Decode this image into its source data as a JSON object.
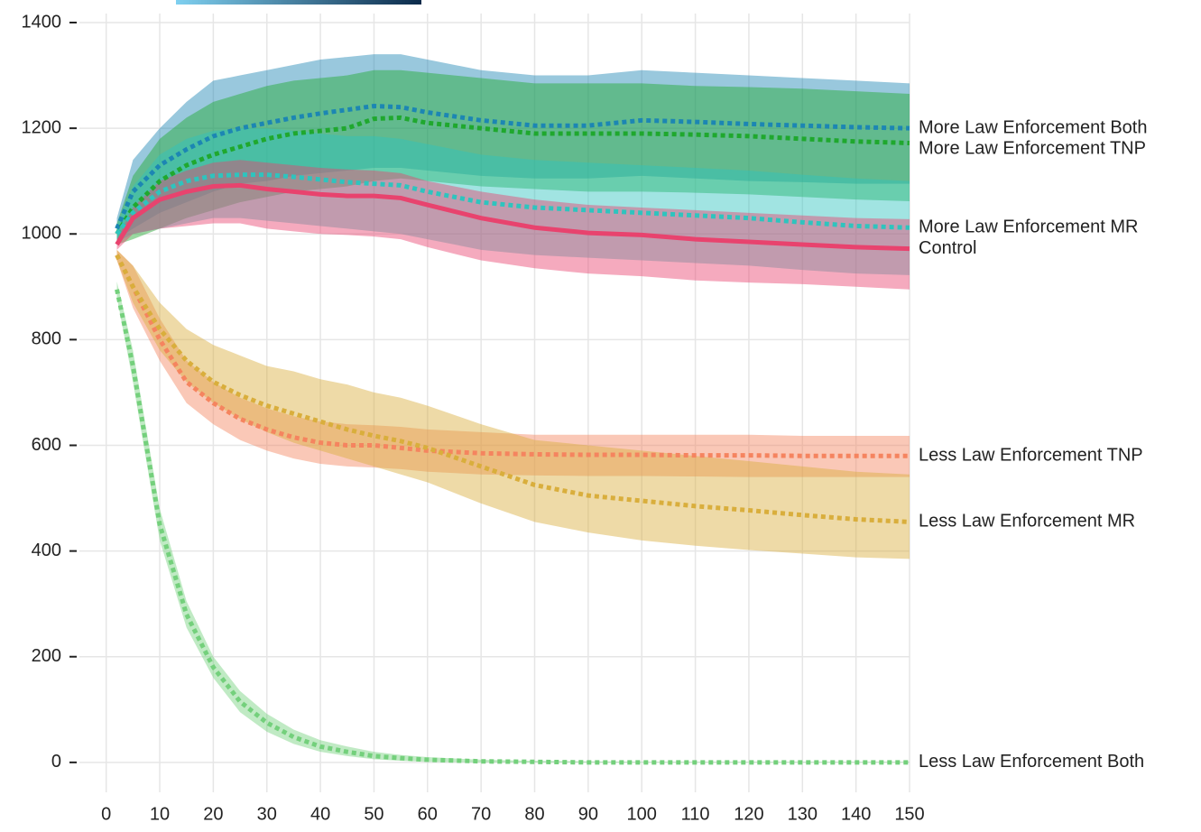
{
  "chart_data": {
    "type": "line",
    "x": [
      2,
      5,
      10,
      15,
      20,
      25,
      30,
      35,
      40,
      45,
      50,
      55,
      60,
      70,
      80,
      90,
      100,
      110,
      120,
      130,
      140,
      150
    ],
    "xlim": [
      -5,
      150
    ],
    "ylim": [
      -60,
      1400
    ],
    "xticks": [
      0,
      10,
      20,
      30,
      40,
      50,
      60,
      70,
      80,
      90,
      100,
      110,
      120,
      130,
      140,
      150
    ],
    "yticks": [
      0,
      200,
      400,
      600,
      800,
      1000,
      1200,
      1400
    ],
    "grid": true,
    "series": [
      {
        "name": "More Law Enforcement Both",
        "color": "#1c86b3",
        "line_style": "dotted",
        "values": [
          1010,
          1080,
          1130,
          1160,
          1185,
          1200,
          1210,
          1220,
          1228,
          1235,
          1242,
          1240,
          1230,
          1215,
          1205,
          1205,
          1215,
          1212,
          1208,
          1205,
          1202,
          1200
        ],
        "lower": [
          990,
          1010,
          1040,
          1060,
          1080,
          1095,
          1100,
          1110,
          1115,
          1120,
          1125,
          1125,
          1120,
          1110,
          1105,
          1105,
          1110,
          1105,
          1100,
          1098,
          1095,
          1095
        ],
        "upper": [
          1030,
          1140,
          1200,
          1250,
          1290,
          1300,
          1310,
          1320,
          1330,
          1335,
          1340,
          1340,
          1330,
          1310,
          1300,
          1300,
          1310,
          1305,
          1300,
          1295,
          1290,
          1285
        ]
      },
      {
        "name": "More Law Enforcement TNP",
        "color": "#1fa82e",
        "line_style": "dotted",
        "values": [
          1000,
          1050,
          1100,
          1130,
          1150,
          1165,
          1180,
          1190,
          1195,
          1200,
          1218,
          1220,
          1210,
          1200,
          1190,
          1190,
          1190,
          1188,
          1185,
          1180,
          1175,
          1172
        ],
        "lower": [
          980,
          990,
          1010,
          1030,
          1045,
          1060,
          1070,
          1080,
          1085,
          1090,
          1100,
          1105,
          1100,
          1090,
          1085,
          1080,
          1080,
          1078,
          1075,
          1070,
          1065,
          1062
        ],
        "upper": [
          1020,
          1110,
          1180,
          1220,
          1250,
          1265,
          1280,
          1290,
          1295,
          1300,
          1310,
          1310,
          1305,
          1295,
          1285,
          1285,
          1285,
          1280,
          1278,
          1275,
          1270,
          1265
        ]
      },
      {
        "name": "More Law Enforcement MR",
        "color": "#2ec4be",
        "line_style": "dotted",
        "values": [
          1000,
          1040,
          1080,
          1100,
          1110,
          1112,
          1112,
          1108,
          1103,
          1098,
          1095,
          1092,
          1080,
          1060,
          1050,
          1045,
          1040,
          1035,
          1030,
          1022,
          1015,
          1012
        ],
        "lower": [
          985,
          1000,
          1010,
          1020,
          1030,
          1030,
          1025,
          1020,
          1015,
          1010,
          1005,
          1000,
          990,
          970,
          960,
          955,
          950,
          945,
          940,
          932,
          925,
          922
        ],
        "upper": [
          1015,
          1090,
          1150,
          1180,
          1195,
          1200,
          1200,
          1195,
          1190,
          1185,
          1185,
          1180,
          1170,
          1150,
          1140,
          1135,
          1130,
          1125,
          1120,
          1112,
          1105,
          1100
        ]
      },
      {
        "name": "Control",
        "color": "#e8436e",
        "line_style": "solid",
        "values": [
          980,
          1030,
          1065,
          1080,
          1090,
          1092,
          1085,
          1080,
          1075,
          1072,
          1072,
          1068,
          1055,
          1030,
          1012,
          1002,
          998,
          990,
          985,
          980,
          975,
          972
        ],
        "lower": [
          970,
          1000,
          1010,
          1015,
          1020,
          1020,
          1010,
          1005,
          1000,
          998,
          995,
          990,
          975,
          950,
          935,
          925,
          920,
          912,
          908,
          905,
          900,
          895
        ],
        "upper": [
          990,
          1050,
          1100,
          1120,
          1135,
          1140,
          1135,
          1130,
          1125,
          1122,
          1120,
          1115,
          1100,
          1080,
          1065,
          1055,
          1050,
          1045,
          1040,
          1035,
          1030,
          1028
        ]
      },
      {
        "name": "Less Law Enforcement TNP",
        "color": "#f5845f",
        "line_style": "dotted",
        "values": [
          960,
          900,
          800,
          720,
          680,
          650,
          630,
          615,
          605,
          600,
          600,
          595,
          590,
          585,
          583,
          582,
          582,
          581,
          581,
          580,
          580,
          580
        ],
        "lower": [
          950,
          860,
          760,
          680,
          640,
          610,
          590,
          575,
          565,
          560,
          558,
          555,
          550,
          545,
          543,
          542,
          542,
          541,
          540,
          540,
          540,
          540
        ],
        "upper": [
          970,
          940,
          840,
          760,
          720,
          690,
          670,
          655,
          645,
          640,
          638,
          635,
          630,
          625,
          620,
          620,
          620,
          620,
          620,
          618,
          618,
          618
        ]
      },
      {
        "name": "Less Law Enforcement MR",
        "color": "#d9ae3c",
        "line_style": "dotted",
        "values": [
          960,
          900,
          820,
          760,
          720,
          695,
          675,
          660,
          645,
          630,
          618,
          608,
          595,
          560,
          525,
          505,
          495,
          485,
          477,
          468,
          460,
          455
        ],
        "lower": [
          950,
          870,
          780,
          720,
          680,
          650,
          625,
          605,
          590,
          575,
          560,
          545,
          530,
          490,
          455,
          435,
          420,
          410,
          402,
          395,
          388,
          385
        ],
        "upper": [
          970,
          940,
          870,
          820,
          790,
          770,
          750,
          740,
          725,
          715,
          700,
          690,
          675,
          640,
          610,
          600,
          590,
          580,
          570,
          560,
          550,
          545
        ]
      },
      {
        "name": "Less Law Enforcement Both",
        "color": "#74d07c",
        "line_style": "dotted",
        "values": [
          895,
          750,
          450,
          280,
          180,
          115,
          75,
          48,
          30,
          20,
          12,
          8,
          5,
          2,
          1,
          0,
          0,
          0,
          0,
          0,
          0,
          0
        ],
        "lower": [
          880,
          720,
          420,
          255,
          160,
          95,
          58,
          35,
          20,
          12,
          6,
          3,
          1,
          0,
          0,
          0,
          0,
          0,
          0,
          0,
          0,
          0
        ],
        "upper": [
          910,
          780,
          480,
          305,
          200,
          135,
          92,
          62,
          42,
          30,
          20,
          14,
          10,
          5,
          3,
          2,
          1,
          1,
          1,
          1,
          1,
          1
        ]
      }
    ]
  }
}
